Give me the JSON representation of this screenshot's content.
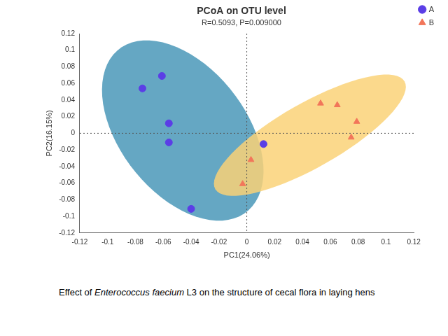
{
  "chart_data": {
    "type": "scatter",
    "title": "PCoA on OTU level",
    "subtitle": "R=0.5093, P=0.009000",
    "x_label": "PC1(24.06%)",
    "y_label": "PC2(16.15%)",
    "series": [
      {
        "name": "A",
        "color": "#5b3ee6",
        "marker": "circle",
        "x": [
          -0.075,
          -0.061,
          -0.056,
          -0.056,
          -0.04,
          0.012
        ],
        "values": [
          0.054,
          0.069,
          0.012,
          -0.011,
          -0.091,
          -0.013
        ]
      },
      {
        "name": "B",
        "color": "#f2765a",
        "marker": "triangle",
        "x": [
          -0.003,
          0.003,
          0.053,
          0.065,
          0.079,
          0.075
        ],
        "values": [
          -0.061,
          -0.032,
          0.036,
          0.034,
          0.014,
          -0.005
        ]
      }
    ],
    "xlim": [
      -0.12,
      0.12
    ],
    "xticks": [
      -0.12,
      -0.1,
      -0.08,
      -0.06,
      -0.04,
      -0.02,
      0,
      0.02,
      0.04,
      0.06,
      0.08,
      0.1,
      0.12
    ],
    "ylim": [
      -0.12,
      0.12
    ],
    "yticks": [
      -0.12,
      -0.1,
      -0.08,
      -0.06,
      -0.04,
      -0.02,
      0,
      0.02,
      0.04,
      0.06,
      0.08,
      0.1,
      0.12
    ],
    "grid": false,
    "legend": "right",
    "caption": [
      "Effect of ",
      "Enterococcus faecium",
      " L3 on the structure of cecal flora in laying hens"
    ]
  }
}
